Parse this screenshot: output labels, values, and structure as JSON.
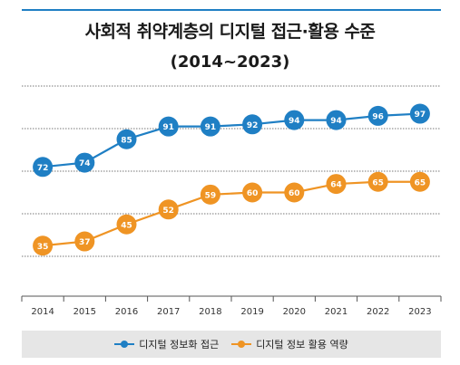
{
  "chart_data": {
    "type": "line",
    "title": "사회적 취약계층의 디지털 접근·활용 수준",
    "subtitle": "(2014~2023)",
    "categories": [
      "2014",
      "2015",
      "2016",
      "2017",
      "2018",
      "2019",
      "2020",
      "2021",
      "2022",
      "2023"
    ],
    "series": [
      {
        "name": "디지털 정보화 접근",
        "color": "#1f7fc4",
        "values": [
          72,
          74,
          85,
          91,
          91,
          92,
          94,
          94,
          96,
          97
        ]
      },
      {
        "name": "디지털 정보 활용 역량",
        "color": "#ef9424",
        "values": [
          35,
          37,
          45,
          52,
          59,
          60,
          60,
          64,
          65,
          65
        ]
      }
    ],
    "ylim": [
      10,
      110
    ],
    "grid": true,
    "legend_position": "bottom"
  }
}
